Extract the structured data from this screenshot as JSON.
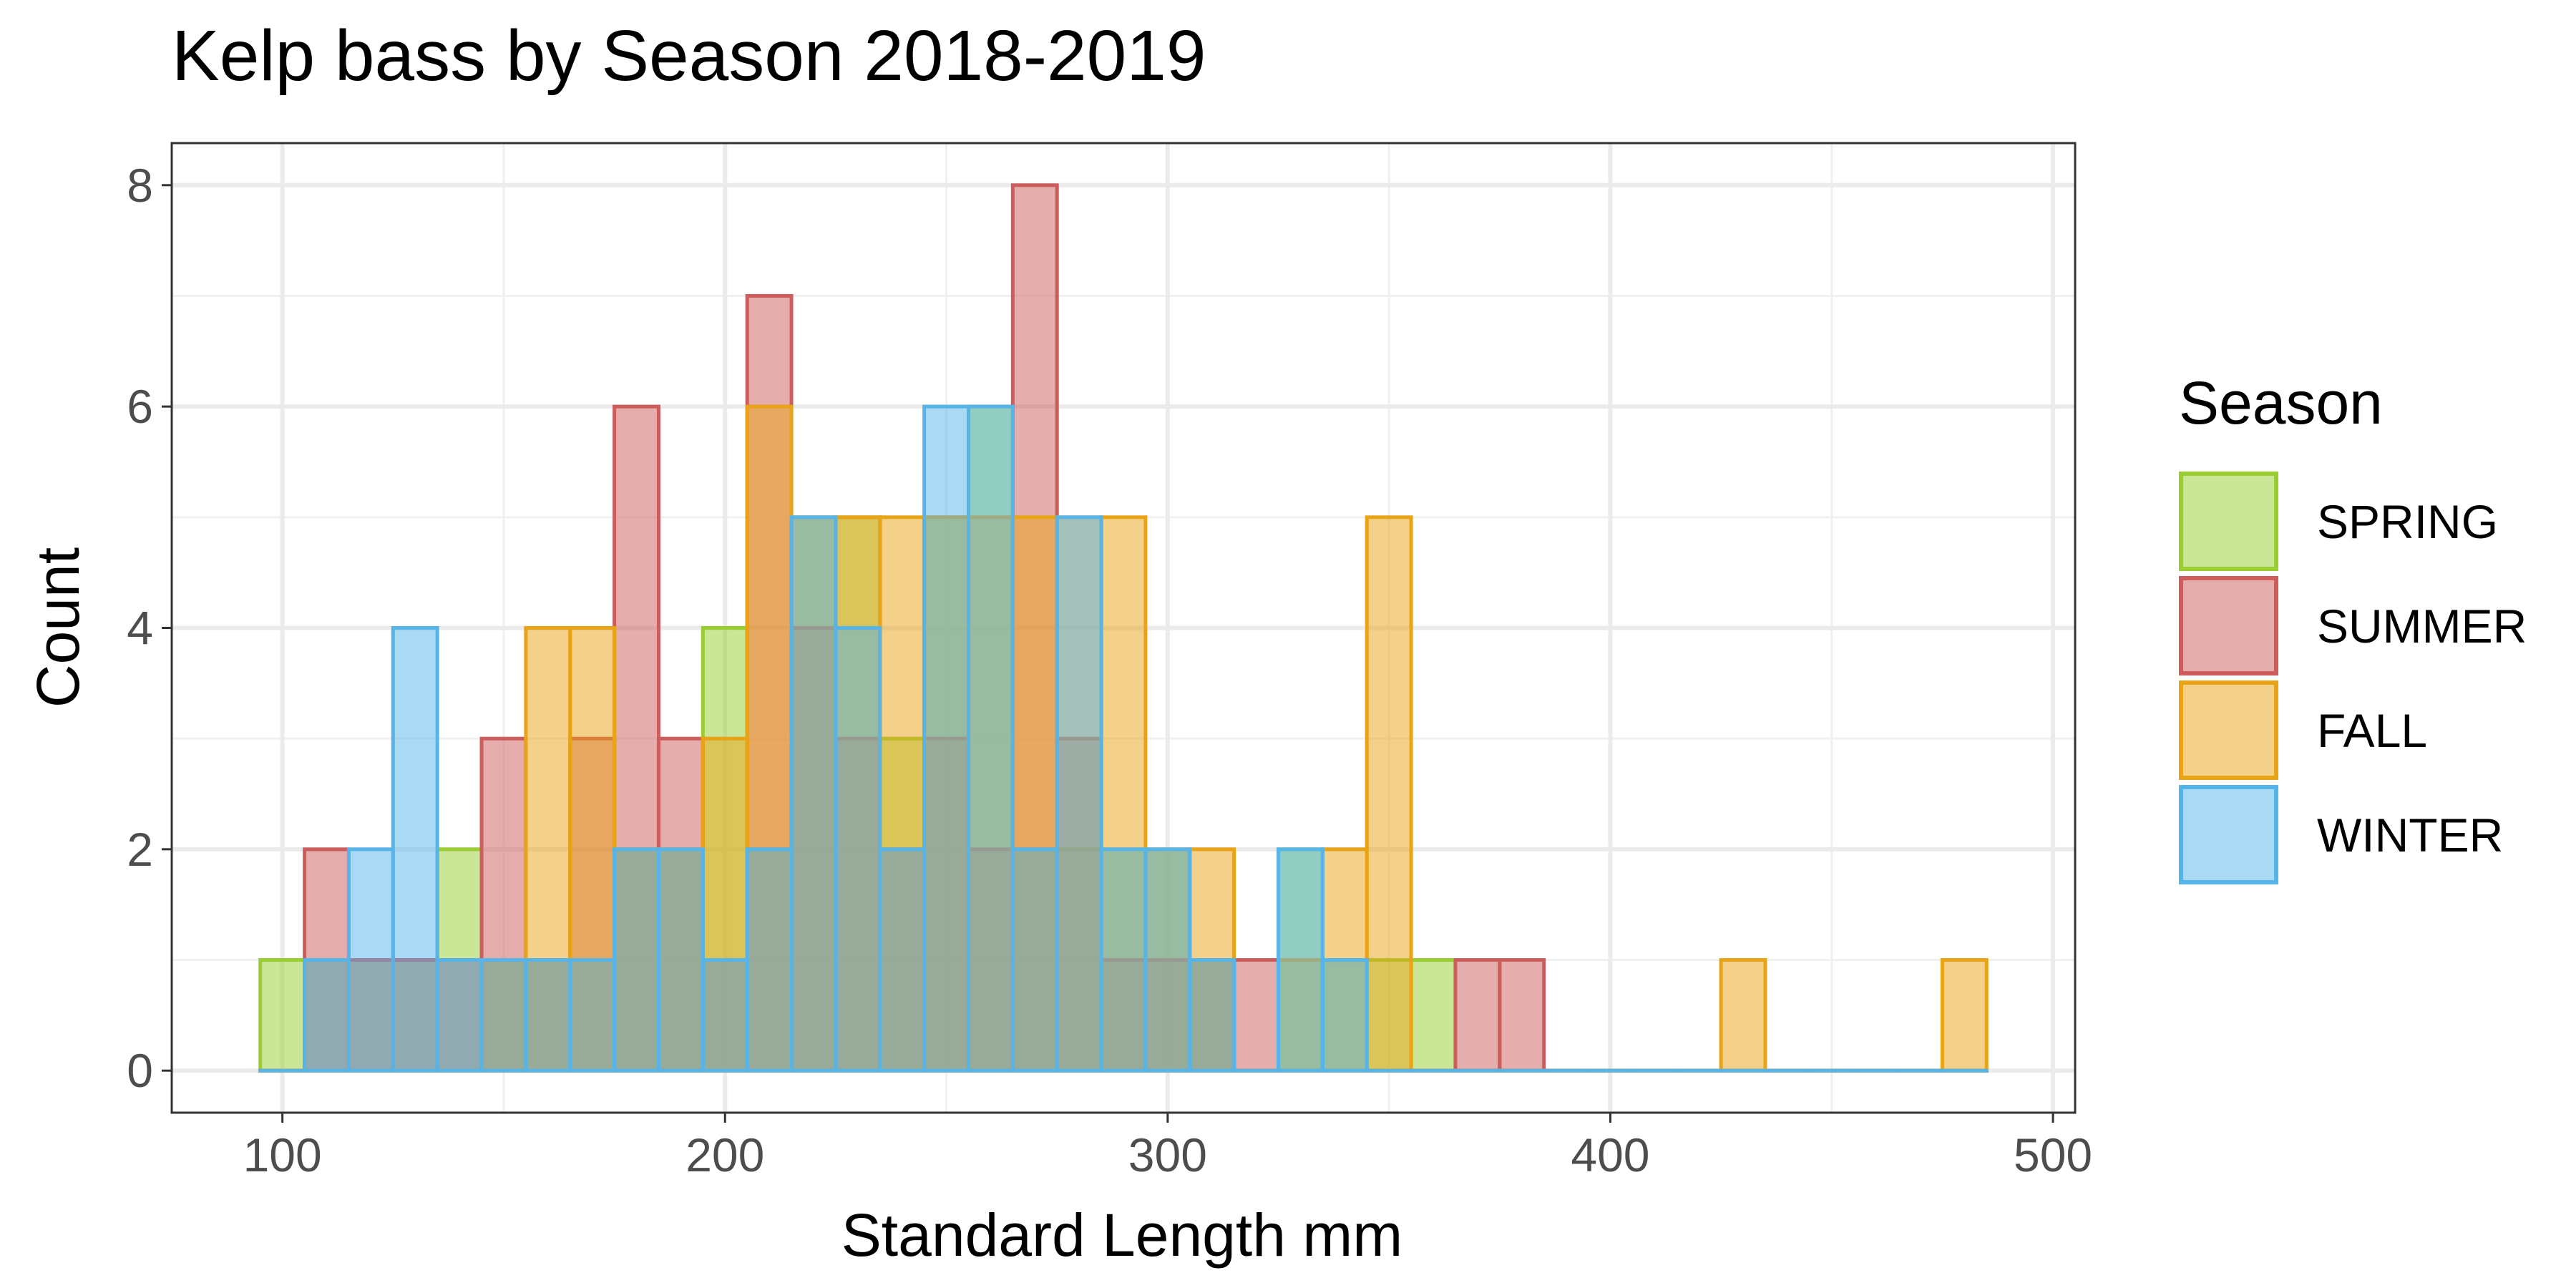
{
  "chart_data": {
    "type": "histogram",
    "title": "Kelp bass by Season 2018-2019",
    "xlabel": "Standard Length mm",
    "ylabel": "Count",
    "xlim": [
      75,
      505
    ],
    "ylim": [
      -0.38,
      8.38
    ],
    "x_ticks": [
      100,
      200,
      300,
      400,
      500
    ],
    "y_ticks": [
      0,
      2,
      4,
      6,
      8
    ],
    "bin_width": 10,
    "bin_centers": [
      100,
      110,
      120,
      130,
      140,
      150,
      160,
      170,
      180,
      190,
      200,
      210,
      220,
      230,
      240,
      250,
      260,
      270,
      280,
      290,
      300,
      310,
      320,
      330,
      340,
      350,
      360,
      370,
      380,
      390,
      400,
      410,
      420,
      430,
      440,
      450,
      460,
      470,
      480
    ],
    "grid": true,
    "legend": {
      "title": "Season",
      "position": "right"
    },
    "series": [
      {
        "name": "SPRING",
        "color": "#9ACD32",
        "values": [
          1,
          1,
          1,
          1,
          2,
          1,
          1,
          1,
          2,
          2,
          4,
          2,
          5,
          5,
          3,
          5,
          6,
          2,
          2,
          2,
          2,
          1,
          0,
          2,
          1,
          1,
          1,
          0,
          0,
          0,
          0,
          0,
          0,
          0,
          0,
          0,
          0,
          0,
          0
        ]
      },
      {
        "name": "SUMMER",
        "color": "#CD5C5C",
        "values": [
          0,
          2,
          1,
          1,
          1,
          3,
          1,
          3,
          6,
          3,
          1,
          7,
          4,
          3,
          2,
          3,
          2,
          8,
          3,
          1,
          1,
          1,
          1,
          0,
          0,
          0,
          0,
          1,
          1,
          0,
          0,
          0,
          0,
          0,
          0,
          0,
          0,
          0,
          0
        ]
      },
      {
        "name": "FALL",
        "color": "#E8A317",
        "values": [
          0,
          0,
          0,
          0,
          0,
          1,
          4,
          4,
          2,
          2,
          3,
          6,
          5,
          5,
          5,
          5,
          5,
          5,
          5,
          5,
          2,
          2,
          0,
          1,
          2,
          5,
          0,
          0,
          0,
          0,
          0,
          0,
          0,
          1,
          0,
          0,
          0,
          0,
          1
        ]
      },
      {
        "name": "WINTER",
        "color": "#56B4E9",
        "values": [
          0,
          1,
          2,
          4,
          1,
          1,
          1,
          1,
          2,
          2,
          1,
          2,
          5,
          4,
          2,
          6,
          6,
          2,
          5,
          2,
          2,
          1,
          0,
          2,
          1,
          0,
          0,
          0,
          0,
          0,
          0,
          0,
          0,
          0,
          0,
          0,
          0,
          0,
          0
        ]
      }
    ]
  }
}
